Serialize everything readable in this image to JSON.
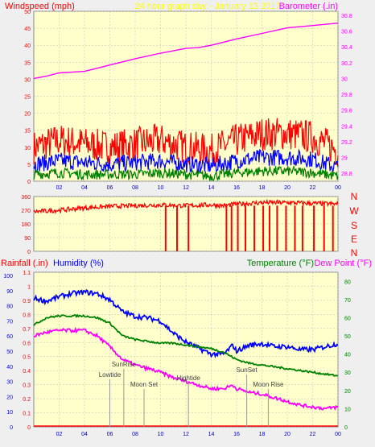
{
  "header": {
    "left_label": "Windspeed (mph)",
    "center_title": "24 hour graph day - January 13 2017",
    "right_label": "Barometer (.in)"
  },
  "middle": {
    "compass_labels": [
      "N",
      "W",
      "S",
      "E",
      "N"
    ]
  },
  "bottom_header": {
    "rainfall_label": "Rainfall (.in)",
    "humidity_label": "Humidity (%)",
    "temperature_label": "Temperature (°F)",
    "dewpoint_label": "Dew Point (°F)"
  },
  "colors": {
    "background": "#efefef",
    "plot_bg": "#ffffcc",
    "windspeed": "#ff0000",
    "windavg": "#0000ff",
    "windlow": "#008000",
    "barometer": "#ff00ff",
    "humidity": "#0000ff",
    "temperature": "#008000",
    "dewpoint": "#ff00ff",
    "rain": "#ff0000",
    "title": "#ffff00"
  },
  "chart_data": [
    {
      "type": "line",
      "name": "wind-barometer",
      "x_ticks": [
        "02",
        "04",
        "06",
        "08",
        "10",
        "12",
        "14",
        "16",
        "18",
        "20",
        "22",
        "00"
      ],
      "y_left_ticks": [
        0,
        5,
        10,
        15,
        20,
        25,
        30,
        35,
        40,
        45,
        50
      ],
      "y_left_range": [
        0,
        50
      ],
      "y_right_ticks": [
        28.8,
        29,
        29.2,
        29.4,
        29.6,
        29.8,
        30,
        30.2,
        30.4,
        30.6,
        30.8
      ],
      "y_right_range": [
        28.7,
        30.85
      ],
      "x_range": [
        0,
        24
      ],
      "series": [
        {
          "key": "gust",
          "axis": "left",
          "x": [
            0,
            2,
            4,
            6,
            8,
            10,
            12,
            14,
            16,
            18,
            20,
            22,
            24
          ],
          "y": [
            10,
            12,
            11,
            10,
            11,
            12,
            10,
            9,
            12,
            14,
            14,
            13,
            9
          ]
        },
        {
          "key": "avg",
          "axis": "left",
          "x": [
            0,
            2,
            4,
            6,
            8,
            10,
            12,
            14,
            16,
            18,
            20,
            22,
            24
          ],
          "y": [
            5,
            6,
            5.5,
            5,
            5.5,
            6,
            5,
            4.5,
            6,
            7,
            7,
            6.5,
            4
          ]
        },
        {
          "key": "low",
          "axis": "left",
          "x": [
            0,
            2,
            4,
            6,
            8,
            10,
            12,
            14,
            16,
            18,
            20,
            22,
            24
          ],
          "y": [
            2,
            2.5,
            2,
            2,
            2,
            2.5,
            2,
            1.5,
            2.5,
            3,
            3,
            2.5,
            1.5
          ]
        },
        {
          "key": "baro",
          "axis": "right",
          "x": [
            0,
            1,
            2,
            3,
            4,
            5,
            6,
            8,
            10,
            12,
            13,
            14,
            16,
            18,
            20,
            22,
            24
          ],
          "y": [
            30.0,
            30.03,
            30.07,
            30.08,
            30.09,
            30.13,
            30.17,
            30.25,
            30.32,
            30.38,
            30.39,
            30.42,
            30.5,
            30.57,
            30.64,
            30.67,
            30.7
          ]
        }
      ]
    },
    {
      "type": "scatter",
      "name": "wind-direction",
      "y_ticks": [
        0,
        90,
        180,
        270,
        360
      ],
      "y_range": [
        0,
        360
      ],
      "x_range": [
        0,
        24
      ],
      "x": [
        0,
        2,
        4,
        6,
        8,
        10,
        12,
        14,
        15,
        16,
        18,
        20,
        22,
        24
      ],
      "y": [
        260,
        270,
        285,
        295,
        300,
        305,
        300,
        305,
        300,
        310,
        320,
        320,
        315,
        310
      ],
      "drop_hours": [
        10.4,
        11.3,
        12.2,
        15.2,
        15.6,
        16.1,
        16.7,
        17.4,
        18.1,
        18.6,
        19.2,
        19.9,
        20.6,
        21.2,
        22.1,
        22.9,
        23.6
      ]
    },
    {
      "type": "line",
      "name": "humidity-temperature",
      "x_ticks": [
        "02",
        "04",
        "06",
        "08",
        "10",
        "12",
        "14",
        "16",
        "18",
        "20",
        "22",
        "00"
      ],
      "y_rain_ticks": [
        0,
        0.1,
        0.2,
        0.3,
        0.4,
        0.5,
        0.6,
        0.7,
        0.8,
        0.9,
        1,
        1.1
      ],
      "y_rain_range": [
        0,
        1.1
      ],
      "y_humidity_ticks": [
        0,
        10,
        20,
        30,
        40,
        50,
        60,
        70,
        80,
        90,
        100
      ],
      "y_temp_ticks": [
        0,
        10,
        20,
        30,
        40,
        50,
        60,
        70,
        80
      ],
      "y_temp_range": [
        0,
        85
      ],
      "x_range": [
        0,
        24
      ],
      "series": [
        {
          "key": "humidity",
          "axis": "humidity",
          "x": [
            0,
            1,
            2,
            3,
            4,
            5,
            6,
            7,
            8,
            9,
            10,
            11,
            12,
            13,
            14,
            15,
            15.7,
            16,
            17,
            18,
            19,
            20,
            21,
            22,
            23,
            24
          ],
          "y": [
            85,
            83,
            86,
            88,
            89,
            88,
            84,
            76,
            73,
            72,
            70,
            62,
            56,
            52,
            48,
            48,
            54,
            50,
            54,
            55,
            53,
            53,
            51,
            51,
            53,
            55
          ]
        },
        {
          "key": "temperature",
          "axis": "temp",
          "x": [
            0,
            1,
            2,
            3,
            4,
            5,
            6,
            7,
            8,
            9,
            10,
            11,
            12,
            13,
            14,
            15,
            16,
            17,
            18,
            19,
            20,
            21,
            22,
            23,
            24
          ],
          "y": [
            56,
            60,
            61,
            61,
            61,
            60,
            57,
            50,
            48,
            47,
            46,
            46,
            45,
            44,
            43,
            41,
            37,
            35,
            34,
            33,
            32,
            31,
            30,
            29,
            28
          ]
        },
        {
          "key": "dewpoint",
          "axis": "temp",
          "x": [
            0,
            1,
            2,
            3,
            4,
            5,
            6,
            7,
            8,
            9,
            10,
            11,
            12,
            13,
            14,
            15,
            15.7,
            16,
            17,
            18,
            19,
            20,
            21,
            22,
            23,
            24
          ],
          "y": [
            50,
            52,
            53,
            53,
            53,
            50,
            44,
            37,
            34,
            32,
            30,
            27,
            25,
            23,
            21,
            21,
            23,
            21,
            19,
            18,
            16,
            14,
            12,
            11,
            10,
            11
          ]
        }
      ],
      "events": [
        {
          "label": "Lowtide",
          "hour": 6.0
        },
        {
          "label": "SunRise",
          "hour": 7.1
        },
        {
          "label": "Moon Set",
          "hour": 8.7
        },
        {
          "label": "Hightide",
          "hour": 12.2
        },
        {
          "label": "SunSet",
          "hour": 16.8
        },
        {
          "label": "Moon Rise",
          "hour": 18.5
        }
      ]
    }
  ]
}
